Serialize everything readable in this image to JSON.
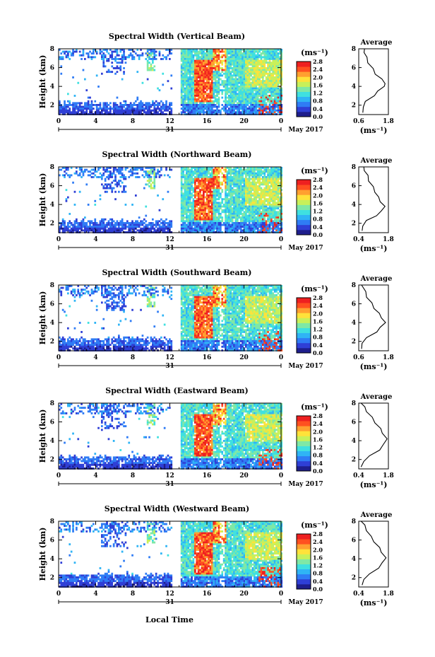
{
  "figure": {
    "xlabel": "Local Time",
    "date_day": "31",
    "date_label": "May 2017",
    "panel_titles": [
      "Spectral Width (Vertical Beam)",
      "Spectral Width (Northward Beam)",
      "Spectral Width (Southward Beam)",
      "Spectral Width (Eastward Beam)",
      "Spectral Width (Westward Beam)"
    ],
    "ylabel": "Height (km)",
    "colorbar_unit": "(ms⁻¹)",
    "avg_title": "Average",
    "avg_xlabel": "(ms⁻¹)",
    "colors": [
      "#1e1e8c",
      "#2f3fd6",
      "#2f7cf5",
      "#2fb4f5",
      "#3fe0e0",
      "#7fe8a6",
      "#c8f05a",
      "#ffe23a",
      "#ffa030",
      "#ff5020",
      "#ee2020"
    ]
  },
  "chart_data": [
    {
      "type": "heatmap",
      "beam": "Vertical",
      "title": "Spectral Width (Vertical Beam)",
      "xlabel": "",
      "ylabel": "Height (km)",
      "x_ticks": [
        "0",
        "4",
        "8",
        "12",
        "16",
        "20",
        "0"
      ],
      "xlim": [
        0,
        24
      ],
      "y_ticks": [
        "2",
        "4",
        "6",
        "8"
      ],
      "ylim": [
        1,
        8
      ],
      "colorbar": {
        "label": "(ms⁻¹)",
        "ticks": [
          "0.0",
          "0.4",
          "0.8",
          "1.2",
          "1.6",
          "2.0",
          "2.4",
          "2.8"
        ],
        "range": [
          0,
          2.8
        ]
      },
      "average": {
        "title": "Average",
        "xlabel": "(ms⁻¹)",
        "x_ticks": [
          "0.6",
          "1.8"
        ],
        "xlim": [
          0.6,
          1.8
        ],
        "y_ticks": [
          "2",
          "4",
          "6",
          "8"
        ],
        "ylim": [
          1,
          8
        ],
        "profile": [
          [
            0.8,
            1.2
          ],
          [
            0.75,
            1.8
          ],
          [
            0.9,
            2.4
          ],
          [
            1.2,
            3.0
          ],
          [
            1.4,
            3.5
          ],
          [
            1.6,
            4.0
          ],
          [
            1.7,
            4.3
          ],
          [
            1.5,
            4.8
          ],
          [
            1.3,
            5.3
          ],
          [
            1.15,
            5.9
          ],
          [
            1.0,
            6.5
          ],
          [
            0.9,
            7.1
          ],
          [
            0.85,
            7.6
          ],
          [
            0.8,
            8.0
          ]
        ]
      }
    },
    {
      "type": "heatmap",
      "beam": "Northward",
      "title": "Spectral Width (Northward Beam)",
      "xlabel": "",
      "ylabel": "Height (km)",
      "x_ticks": [
        "0",
        "4",
        "8",
        "12",
        "16",
        "20",
        "0"
      ],
      "xlim": [
        0,
        24
      ],
      "y_ticks": [
        "2",
        "4",
        "6",
        "8"
      ],
      "ylim": [
        1,
        8
      ],
      "colorbar": {
        "label": "(ms⁻¹)",
        "ticks": [
          "0.0",
          "0.4",
          "0.8",
          "1.2",
          "1.6",
          "2.0",
          "2.4",
          "2.8"
        ],
        "range": [
          0,
          2.8
        ]
      },
      "average": {
        "title": "Average",
        "xlabel": "(ms⁻¹)",
        "x_ticks": [
          "0.4",
          "1.8"
        ],
        "xlim": [
          0.4,
          1.8
        ],
        "y_ticks": [
          "2",
          "4",
          "6",
          "8"
        ],
        "ylim": [
          1,
          8
        ],
        "profile": [
          [
            0.6,
            1.2
          ],
          [
            0.55,
            1.7
          ],
          [
            0.8,
            2.3
          ],
          [
            1.2,
            2.8
          ],
          [
            1.5,
            3.3
          ],
          [
            1.6,
            3.8
          ],
          [
            1.45,
            4.3
          ],
          [
            1.3,
            4.8
          ],
          [
            1.2,
            5.3
          ],
          [
            1.05,
            5.9
          ],
          [
            0.9,
            6.5
          ],
          [
            0.8,
            7.1
          ],
          [
            0.7,
            7.6
          ],
          [
            0.6,
            8.0
          ]
        ]
      }
    },
    {
      "type": "heatmap",
      "beam": "Southward",
      "title": "Spectral Width (Southward Beam)",
      "xlabel": "",
      "ylabel": "Height (km)",
      "x_ticks": [
        "0",
        "4",
        "8",
        "12",
        "16",
        "20",
        "0"
      ],
      "xlim": [
        0,
        24
      ],
      "y_ticks": [
        "2",
        "4",
        "6",
        "8"
      ],
      "ylim": [
        1,
        8
      ],
      "colorbar": {
        "label": "(ms⁻¹)",
        "ticks": [
          "0.0",
          "0.4",
          "0.8",
          "1.2",
          "1.6",
          "2.0",
          "2.4",
          "2.8"
        ],
        "range": [
          0,
          2.8
        ]
      },
      "average": {
        "title": "Average",
        "xlabel": "(ms⁻¹)",
        "x_ticks": [
          "0.6",
          "1.8"
        ],
        "xlim": [
          0.6,
          1.8
        ],
        "y_ticks": [
          "2",
          "4",
          "6",
          "8"
        ],
        "ylim": [
          1,
          8
        ],
        "profile": [
          [
            0.75,
            1.2
          ],
          [
            0.7,
            1.8
          ],
          [
            0.95,
            2.4
          ],
          [
            1.3,
            3.0
          ],
          [
            1.5,
            3.5
          ],
          [
            1.65,
            4.0
          ],
          [
            1.55,
            4.5
          ],
          [
            1.4,
            5.0
          ],
          [
            1.25,
            5.5
          ],
          [
            1.1,
            6.1
          ],
          [
            0.95,
            6.7
          ],
          [
            0.85,
            7.3
          ],
          [
            0.75,
            8.0
          ]
        ]
      }
    },
    {
      "type": "heatmap",
      "beam": "Eastward",
      "title": "Spectral Width (Eastward Beam)",
      "xlabel": "",
      "ylabel": "Height (km)",
      "x_ticks": [
        "0",
        "4",
        "8",
        "12",
        "16",
        "20",
        "0"
      ],
      "xlim": [
        0,
        24
      ],
      "y_ticks": [
        "2",
        "4",
        "6",
        "8"
      ],
      "ylim": [
        1,
        8
      ],
      "colorbar": {
        "label": "(ms⁻¹)",
        "ticks": [
          "0.0",
          "0.4",
          "0.8",
          "1.2",
          "1.6",
          "2.0",
          "2.4",
          "2.8"
        ],
        "range": [
          0,
          2.8
        ]
      },
      "average": {
        "title": "Average",
        "xlabel": "(ms⁻¹)",
        "x_ticks": [
          "0.4",
          "1.8"
        ],
        "xlim": [
          0.4,
          1.8
        ],
        "y_ticks": [
          "2",
          "4",
          "6",
          "8"
        ],
        "ylim": [
          1,
          8
        ],
        "profile": [
          [
            0.55,
            1.2
          ],
          [
            0.6,
            1.8
          ],
          [
            0.95,
            2.4
          ],
          [
            1.35,
            3.0
          ],
          [
            1.6,
            3.6
          ],
          [
            1.7,
            4.2
          ],
          [
            1.55,
            4.8
          ],
          [
            1.4,
            5.3
          ],
          [
            1.2,
            5.9
          ],
          [
            1.0,
            6.5
          ],
          [
            0.8,
            7.1
          ],
          [
            0.65,
            7.6
          ],
          [
            0.55,
            8.0
          ]
        ]
      }
    },
    {
      "type": "heatmap",
      "beam": "Westward",
      "title": "Spectral Width (Westward Beam)",
      "xlabel": "Local Time",
      "ylabel": "Height (km)",
      "x_ticks": [
        "0",
        "4",
        "8",
        "12",
        "16",
        "20",
        "0"
      ],
      "xlim": [
        0,
        24
      ],
      "y_ticks": [
        "2",
        "4",
        "6",
        "8"
      ],
      "ylim": [
        1,
        8
      ],
      "colorbar": {
        "label": "(ms⁻¹)",
        "ticks": [
          "0.0",
          "0.4",
          "0.8",
          "1.2",
          "1.6",
          "2.0",
          "2.4",
          "2.8"
        ],
        "range": [
          0,
          2.8
        ]
      },
      "average": {
        "title": "Average",
        "xlabel": "(ms⁻¹)",
        "x_ticks": [
          "0.4",
          "1.8"
        ],
        "xlim": [
          0.4,
          1.8
        ],
        "y_ticks": [
          "2",
          "4",
          "6",
          "8"
        ],
        "ylim": [
          1,
          8
        ],
        "profile": [
          [
            0.6,
            1.2
          ],
          [
            0.6,
            1.8
          ],
          [
            0.95,
            2.4
          ],
          [
            1.3,
            3.0
          ],
          [
            1.55,
            3.6
          ],
          [
            1.65,
            4.1
          ],
          [
            1.5,
            4.7
          ],
          [
            1.35,
            5.2
          ],
          [
            1.15,
            5.8
          ],
          [
            0.95,
            6.4
          ],
          [
            0.8,
            7.0
          ],
          [
            0.65,
            7.6
          ],
          [
            0.55,
            8.0
          ]
        ]
      }
    }
  ]
}
